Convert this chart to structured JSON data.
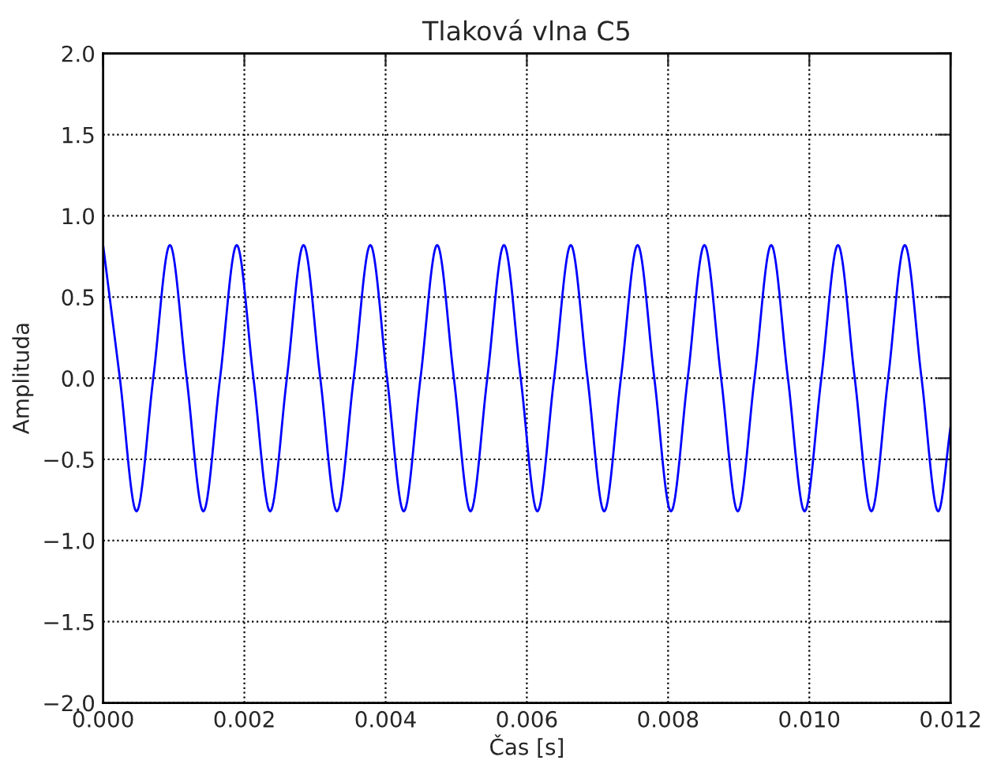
{
  "chart_data": {
    "type": "line",
    "title": "Tlaková vlna C5",
    "xlabel": "Čas [s]",
    "ylabel": "Amplituda",
    "x": [
      0,
      0.000237,
      0.000473,
      0.00071,
      0.000946,
      0.001183,
      0.001419,
      0.001656,
      0.001892,
      0.002129,
      0.002365,
      0.002602,
      0.002838,
      0.003075,
      0.003311,
      0.003548,
      0.003784,
      0.004021,
      0.004257,
      0.004494,
      0.00473,
      0.004967,
      0.005203,
      0.00544,
      0.005676,
      0.005913,
      0.006149,
      0.006386,
      0.006622,
      0.006859,
      0.007095,
      0.007332,
      0.007568,
      0.007805,
      0.008041,
      0.008278,
      0.008514,
      0.008751,
      0.008987,
      0.009224,
      0.00946,
      0.009697,
      0.009933,
      0.01017,
      0.010406,
      0.010643,
      0.010879,
      0.011116,
      0.011352,
      0.011589,
      0.011825,
      0.012
    ],
    "series": [
      {
        "color": "#0000ff",
        "values": [
          0.82,
          0,
          -0.82,
          0,
          0.82,
          0,
          -0.82,
          0,
          0.82,
          0,
          -0.82,
          0,
          0.82,
          0,
          -0.82,
          0,
          0.82,
          0,
          -0.82,
          0,
          0.82,
          0,
          -0.82,
          0,
          0.82,
          0,
          -0.82,
          0,
          0.82,
          0,
          -0.82,
          0,
          0.82,
          0,
          -0.82,
          0,
          0.82,
          0,
          -0.82,
          0,
          0.82,
          0,
          -0.82,
          0,
          0.82,
          0,
          -0.82,
          0,
          0.82,
          0,
          -0.82,
          -0.3
        ]
      }
    ],
    "xlim": [
      0,
      0.012
    ],
    "ylim": [
      -2.0,
      2.0
    ],
    "xticks": [
      {
        "value": 0,
        "label": "0.000"
      },
      {
        "value": 0.002,
        "label": "0.002"
      },
      {
        "value": 0.004,
        "label": "0.004"
      },
      {
        "value": 0.006,
        "label": "0.006"
      },
      {
        "value": 0.008,
        "label": "0.008"
      },
      {
        "value": 0.01,
        "label": "0.010"
      },
      {
        "value": 0.012,
        "label": "0.012"
      }
    ],
    "yticks": [
      {
        "value": -2,
        "label": "−2.0"
      },
      {
        "value": -1.5,
        "label": "−1.5"
      },
      {
        "value": -1,
        "label": "−1.0"
      },
      {
        "value": -0.5,
        "label": "−0.5"
      },
      {
        "value": 0,
        "label": "0.0"
      },
      {
        "value": 0.5,
        "label": "0.5"
      },
      {
        "value": 1,
        "label": "1.0"
      },
      {
        "value": 1.5,
        "label": "1.5"
      },
      {
        "value": 2,
        "label": "2.0"
      }
    ],
    "grid": true,
    "line_style": "solid"
  }
}
